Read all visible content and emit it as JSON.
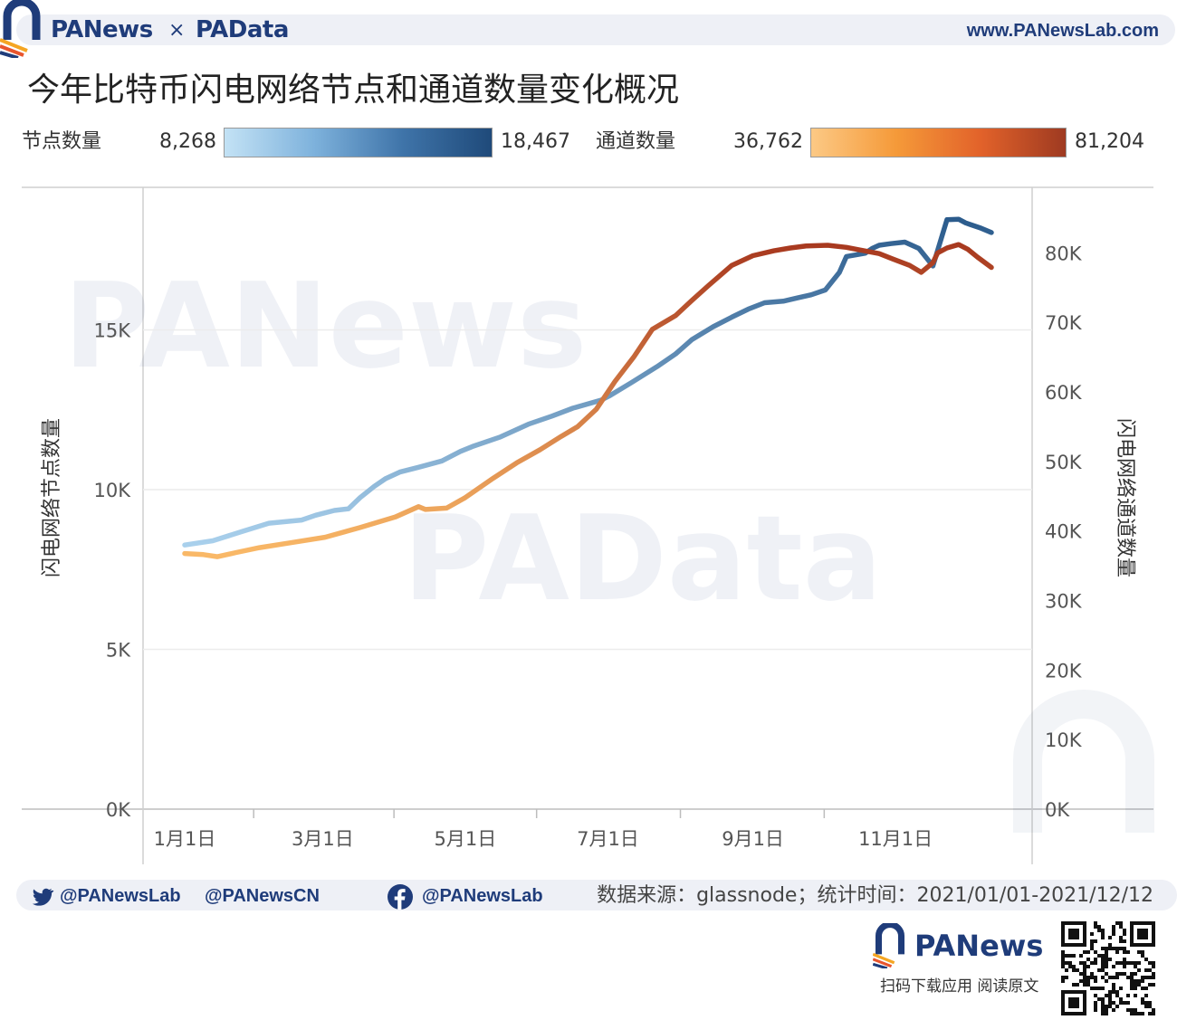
{
  "header": {
    "brand_left": "PANews",
    "brand_sep": "×",
    "brand_right": "PAData",
    "site": "www.PANewsLab.com"
  },
  "title": "今年比特币闪电网络节点和通道数量变化概况",
  "legend": {
    "nodes_label": "节点数量",
    "nodes_min": "8,268",
    "nodes_max": "18,467",
    "channels_label": "通道数量",
    "channels_min": "36,762",
    "channels_max": "81,204"
  },
  "watermarks": [
    "PANews",
    "PAData"
  ],
  "colors": {
    "nodes_light": "#a9d0ec",
    "nodes_dark": "#2b5b8c",
    "channels_light": "#f9b867",
    "channels_dark": "#a8391f",
    "brand": "#1f3c7a"
  },
  "chart_data": {
    "type": "line",
    "ylabel_left": "闪电网络节点数量",
    "ylabel_right": "闪电网络通道数量",
    "y_left_ticks": [
      "0K",
      "5K",
      "10K",
      "15K"
    ],
    "y_left_range": [
      0,
      18500
    ],
    "y_right_ticks": [
      "0K",
      "10K",
      "20K",
      "30K",
      "40K",
      "50K",
      "60K",
      "70K",
      "80K"
    ],
    "y_right_range": [
      0,
      85000
    ],
    "x_ticks": [
      "1月1日",
      "3月1日",
      "5月1日",
      "7月1日",
      "9月1日",
      "11月1日"
    ],
    "x_tick_days": [
      0,
      59,
      120,
      181,
      243,
      304
    ],
    "x_range_days": [
      0,
      345
    ],
    "grid": true,
    "series": [
      {
        "name": "节点数量",
        "axis": "left",
        "x_days": [
          0,
          12,
          25,
          36,
          50,
          56,
          64,
          70,
          75,
          81,
          86,
          92,
          100,
          110,
          118,
          123,
          135,
          147,
          157,
          166,
          178,
          182,
          191,
          202,
          210,
          217,
          226,
          234,
          241,
          248,
          256,
          262,
          268,
          274,
          280,
          283,
          291,
          294,
          297,
          302,
          308,
          314,
          320,
          326,
          331,
          334,
          336,
          340,
          345
        ],
        "values": [
          8268,
          8400,
          8700,
          8950,
          9050,
          9200,
          9350,
          9400,
          9750,
          10100,
          10350,
          10550,
          10700,
          10900,
          11200,
          11350,
          11650,
          12050,
          12300,
          12550,
          12800,
          12950,
          13350,
          13850,
          14250,
          14700,
          15100,
          15400,
          15650,
          15850,
          15900,
          16000,
          16100,
          16250,
          16800,
          17300,
          17400,
          17550,
          17650,
          17700,
          17750,
          17550,
          17000,
          18450,
          18467,
          18350,
          18300,
          18200,
          18050
        ]
      },
      {
        "name": "通道数量",
        "axis": "right",
        "x_days": [
          0,
          8,
          14,
          22,
          32,
          45,
          60,
          75,
          90,
          100,
          103,
          112,
          120,
          132,
          142,
          152,
          161,
          168,
          176,
          184,
          192,
          200,
          210,
          217,
          224,
          234,
          243,
          252,
          259,
          266,
          275,
          283,
          289,
          297,
          303,
          310,
          315,
          320,
          322,
          326,
          331,
          335,
          339,
          345
        ],
        "values": [
          36762,
          36600,
          36300,
          36900,
          37600,
          38300,
          39100,
          40500,
          42000,
          43500,
          43100,
          43300,
          44800,
          47600,
          49800,
          51700,
          53600,
          55000,
          57500,
          61500,
          65000,
          69000,
          71000,
          73200,
          75300,
          78200,
          79600,
          80300,
          80700,
          81000,
          81100,
          80800,
          80400,
          79900,
          79100,
          78200,
          77200,
          78600,
          80000,
          80700,
          81204,
          80500,
          79400,
          77900
        ]
      }
    ]
  },
  "footer": {
    "twitter_1": "@PANewsLab",
    "twitter_2": "@PANewsCN",
    "facebook": "@PANewsLab",
    "source": "数据来源：glassnode；统计时间：2021/01/01-2021/12/12"
  },
  "bottom": {
    "brand": "PANews",
    "sub": "扫码下载应用  阅读原文"
  }
}
